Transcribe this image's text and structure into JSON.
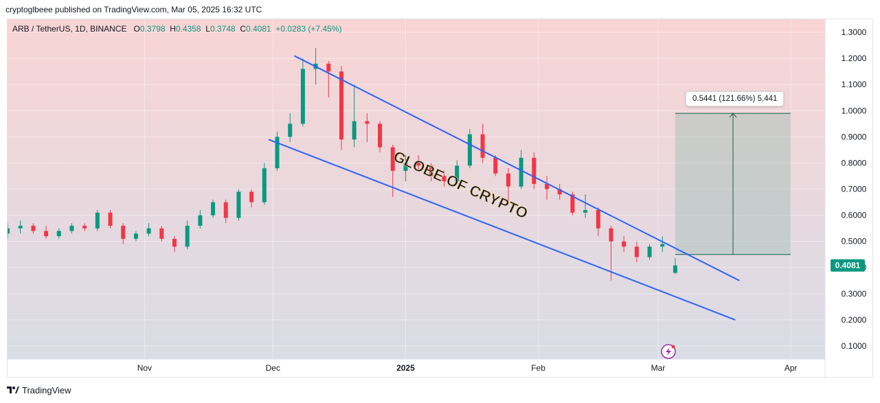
{
  "publisher_line": "cryptoglbeee published on TradingView.com, Mar 05, 2025 16:32 UTC",
  "footer": {
    "brand": "TradingView",
    "logo_icon": "tradingview-logo-icon"
  },
  "legend": {
    "symbol": "ARB / TetherUS, 1D, BINANCE",
    "o_label": "O",
    "o_value": "0.3798",
    "h_label": "H",
    "h_value": "0.4358",
    "l_label": "L",
    "l_value": "0.3748",
    "c_label": "C",
    "c_value": "0.4081",
    "change": "+0.0283 (+7.45%)"
  },
  "watermark": "GLOBE OF CRYPTO",
  "measure_label": "0.5441 (121.66%) 5,441",
  "colors": {
    "up": "#089981",
    "down": "#f23645",
    "trendline": "#2962ff",
    "bg_top": "#f9d4d4",
    "bg_bottom": "#d9dce6",
    "price_badge": "#089981",
    "measure_fill": "#9fbfb5",
    "measure_line": "#0f5f4d"
  },
  "chart_data": {
    "type": "candlestick",
    "title": "ARB / TetherUS, 1D, BINANCE",
    "ylim": [
      0.05,
      1.35
    ],
    "y_ticks": [
      "1.3000",
      "1.2000",
      "1.1000",
      "1.0000",
      "0.9000",
      "0.8000",
      "0.7000",
      "0.6000",
      "0.5000",
      "0.4000",
      "0.3000",
      "0.2000",
      "0.1000"
    ],
    "x_ticks": [
      {
        "label": "Nov",
        "date": "2024-11-01"
      },
      {
        "label": "Dec",
        "date": "2024-12-01"
      },
      {
        "label": "2025",
        "date": "2025-01-01"
      },
      {
        "label": "Feb",
        "date": "2025-02-01"
      },
      {
        "label": "Mar",
        "date": "2025-03-01"
      },
      {
        "label": "Apr",
        "date": "2025-04-01"
      }
    ],
    "x_range": [
      "2024-09-30",
      "2025-04-09"
    ],
    "last_price": "0.4081",
    "series": [
      {
        "date": "2024-09-30",
        "o": 0.53,
        "h": 0.57,
        "l": 0.51,
        "c": 0.55
      },
      {
        "date": "2024-10-03",
        "o": 0.55,
        "h": 0.58,
        "l": 0.53,
        "c": 0.56
      },
      {
        "date": "2024-10-06",
        "o": 0.56,
        "h": 0.57,
        "l": 0.53,
        "c": 0.54
      },
      {
        "date": "2024-10-09",
        "o": 0.54,
        "h": 0.56,
        "l": 0.51,
        "c": 0.52
      },
      {
        "date": "2024-10-12",
        "o": 0.52,
        "h": 0.55,
        "l": 0.51,
        "c": 0.54
      },
      {
        "date": "2024-10-15",
        "o": 0.54,
        "h": 0.57,
        "l": 0.53,
        "c": 0.56
      },
      {
        "date": "2024-10-18",
        "o": 0.56,
        "h": 0.57,
        "l": 0.54,
        "c": 0.55
      },
      {
        "date": "2024-10-21",
        "o": 0.55,
        "h": 0.62,
        "l": 0.54,
        "c": 0.61
      },
      {
        "date": "2024-10-24",
        "o": 0.61,
        "h": 0.62,
        "l": 0.55,
        "c": 0.56
      },
      {
        "date": "2024-10-27",
        "o": 0.56,
        "h": 0.57,
        "l": 0.49,
        "c": 0.51
      },
      {
        "date": "2024-10-30",
        "o": 0.51,
        "h": 0.54,
        "l": 0.5,
        "c": 0.53
      },
      {
        "date": "2024-11-02",
        "o": 0.53,
        "h": 0.57,
        "l": 0.52,
        "c": 0.55
      },
      {
        "date": "2024-11-05",
        "o": 0.55,
        "h": 0.56,
        "l": 0.5,
        "c": 0.51
      },
      {
        "date": "2024-11-08",
        "o": 0.51,
        "h": 0.52,
        "l": 0.46,
        "c": 0.48
      },
      {
        "date": "2024-11-11",
        "o": 0.48,
        "h": 0.58,
        "l": 0.47,
        "c": 0.56
      },
      {
        "date": "2024-11-14",
        "o": 0.56,
        "h": 0.62,
        "l": 0.55,
        "c": 0.6
      },
      {
        "date": "2024-11-17",
        "o": 0.6,
        "h": 0.66,
        "l": 0.59,
        "c": 0.65
      },
      {
        "date": "2024-11-20",
        "o": 0.65,
        "h": 0.66,
        "l": 0.57,
        "c": 0.59
      },
      {
        "date": "2024-11-23",
        "o": 0.59,
        "h": 0.7,
        "l": 0.58,
        "c": 0.69
      },
      {
        "date": "2024-11-26",
        "o": 0.69,
        "h": 0.7,
        "l": 0.63,
        "c": 0.65
      },
      {
        "date": "2024-11-29",
        "o": 0.65,
        "h": 0.8,
        "l": 0.64,
        "c": 0.78
      },
      {
        "date": "2024-12-02",
        "o": 0.78,
        "h": 0.92,
        "l": 0.77,
        "c": 0.9
      },
      {
        "date": "2024-12-05",
        "o": 0.9,
        "h": 0.99,
        "l": 0.88,
        "c": 0.95
      },
      {
        "date": "2024-12-08",
        "o": 0.95,
        "h": 1.2,
        "l": 0.94,
        "c": 1.16
      },
      {
        "date": "2024-12-11",
        "o": 1.16,
        "h": 1.24,
        "l": 1.1,
        "c": 1.18
      },
      {
        "date": "2024-12-14",
        "o": 1.18,
        "h": 1.19,
        "l": 1.05,
        "c": 1.15
      },
      {
        "date": "2024-12-17",
        "o": 1.15,
        "h": 1.17,
        "l": 0.85,
        "c": 0.89
      },
      {
        "date": "2024-12-20",
        "o": 0.89,
        "h": 1.1,
        "l": 0.86,
        "c": 0.96
      },
      {
        "date": "2024-12-23",
        "o": 0.96,
        "h": 0.99,
        "l": 0.88,
        "c": 0.95
      },
      {
        "date": "2024-12-26",
        "o": 0.95,
        "h": 0.96,
        "l": 0.84,
        "c": 0.86
      },
      {
        "date": "2024-12-29",
        "o": 0.86,
        "h": 0.87,
        "l": 0.67,
        "c": 0.77
      },
      {
        "date": "2025-01-01",
        "o": 0.77,
        "h": 0.83,
        "l": 0.73,
        "c": 0.8
      },
      {
        "date": "2025-01-04",
        "o": 0.8,
        "h": 0.83,
        "l": 0.77,
        "c": 0.79
      },
      {
        "date": "2025-01-07",
        "o": 0.79,
        "h": 0.8,
        "l": 0.73,
        "c": 0.75
      },
      {
        "date": "2025-01-10",
        "o": 0.75,
        "h": 0.77,
        "l": 0.71,
        "c": 0.73
      },
      {
        "date": "2025-01-13",
        "o": 0.73,
        "h": 0.81,
        "l": 0.72,
        "c": 0.79
      },
      {
        "date": "2025-01-16",
        "o": 0.79,
        "h": 0.93,
        "l": 0.78,
        "c": 0.91
      },
      {
        "date": "2025-01-19",
        "o": 0.91,
        "h": 0.95,
        "l": 0.8,
        "c": 0.82
      },
      {
        "date": "2025-01-22",
        "o": 0.82,
        "h": 0.83,
        "l": 0.75,
        "c": 0.76
      },
      {
        "date": "2025-01-25",
        "o": 0.76,
        "h": 0.78,
        "l": 0.65,
        "c": 0.71
      },
      {
        "date": "2025-01-28",
        "o": 0.71,
        "h": 0.85,
        "l": 0.7,
        "c": 0.82
      },
      {
        "date": "2025-01-31",
        "o": 0.82,
        "h": 0.84,
        "l": 0.7,
        "c": 0.72
      },
      {
        "date": "2025-02-03",
        "o": 0.72,
        "h": 0.75,
        "l": 0.66,
        "c": 0.7
      },
      {
        "date": "2025-02-06",
        "o": 0.7,
        "h": 0.72,
        "l": 0.66,
        "c": 0.68
      },
      {
        "date": "2025-02-09",
        "o": 0.68,
        "h": 0.69,
        "l": 0.6,
        "c": 0.61
      },
      {
        "date": "2025-02-12",
        "o": 0.61,
        "h": 0.68,
        "l": 0.59,
        "c": 0.62
      },
      {
        "date": "2025-02-15",
        "o": 0.62,
        "h": 0.63,
        "l": 0.52,
        "c": 0.55
      },
      {
        "date": "2025-02-18",
        "o": 0.55,
        "h": 0.56,
        "l": 0.35,
        "c": 0.5
      },
      {
        "date": "2025-02-21",
        "o": 0.5,
        "h": 0.52,
        "l": 0.46,
        "c": 0.48
      },
      {
        "date": "2025-02-24",
        "o": 0.48,
        "h": 0.5,
        "l": 0.42,
        "c": 0.44
      },
      {
        "date": "2025-02-27",
        "o": 0.44,
        "h": 0.49,
        "l": 0.43,
        "c": 0.48
      },
      {
        "date": "2025-03-02",
        "o": 0.48,
        "h": 0.52,
        "l": 0.46,
        "c": 0.49
      },
      {
        "date": "2025-03-05",
        "o": 0.3798,
        "h": 0.4358,
        "l": 0.3748,
        "c": 0.4081
      }
    ],
    "trendlines": [
      {
        "from": {
          "date": "2024-12-06",
          "price": 1.21
        },
        "to": {
          "date": "2025-03-20",
          "price": 0.35
        }
      },
      {
        "from": {
          "date": "2024-11-30",
          "price": 0.89
        },
        "to": {
          "date": "2025-03-19",
          "price": 0.2
        }
      }
    ],
    "measure": {
      "from_date": "2025-03-05",
      "to_date": "2025-04-01",
      "low": 0.45,
      "high": 0.99,
      "label": "0.5441 (121.66%) 5,441"
    }
  }
}
